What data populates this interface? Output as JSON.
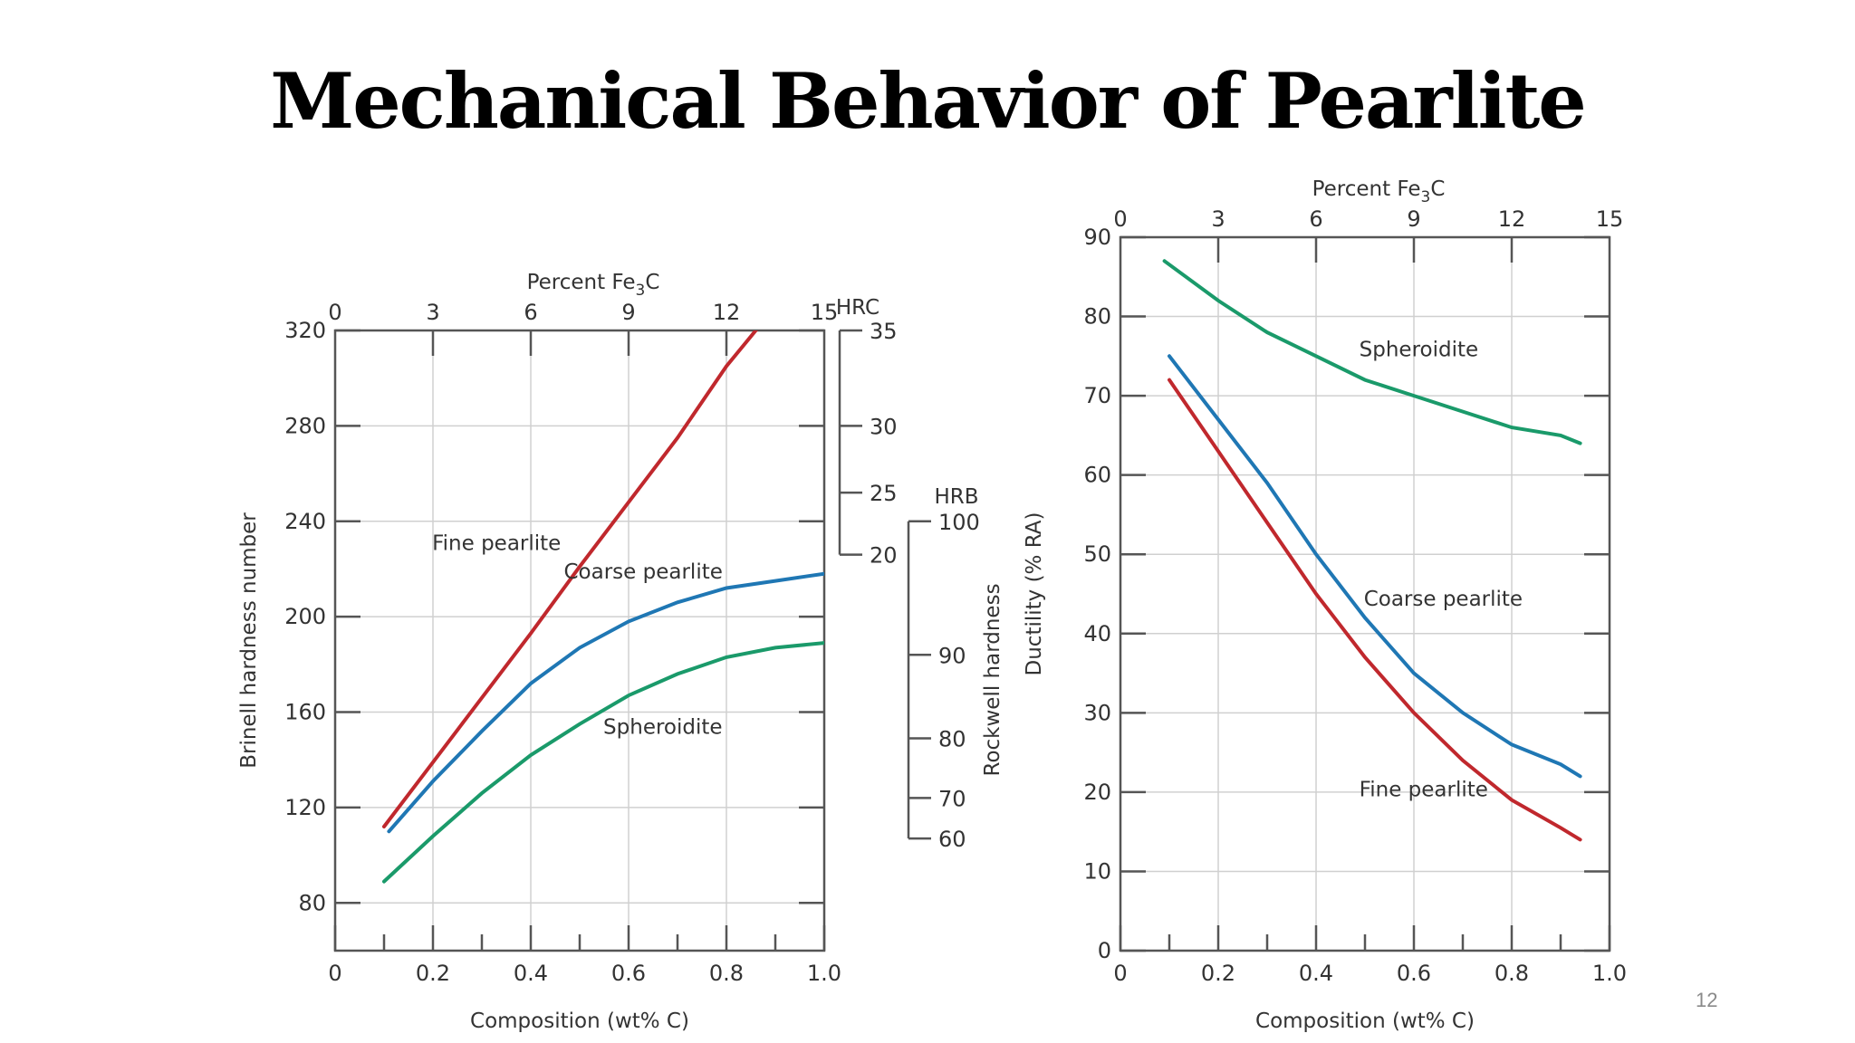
{
  "slide": {
    "title": "Mechanical Behavior of Pearlite",
    "page_number": "12"
  },
  "chart_data": [
    {
      "type": "line",
      "xlabel": "Composition (wt% C)",
      "x_ticks": [
        "0",
        "0.2",
        "0.4",
        "0.6",
        "0.8",
        "1.0"
      ],
      "xlim": [
        0,
        1.0
      ],
      "x2label_parts": [
        "Percent Fe",
        "3",
        "C"
      ],
      "x2_ticks": [
        "0",
        "3",
        "6",
        "9",
        "12",
        "15"
      ],
      "ylabel": "Brinell hardness number",
      "y_ticks": [
        "80",
        "120",
        "160",
        "200",
        "240",
        "280",
        "320"
      ],
      "ylim": [
        60,
        320
      ],
      "grid": true,
      "hrc_scale": {
        "label": "HRC",
        "ticks": [
          {
            "label": "35",
            "brinell": 320
          },
          {
            "label": "30",
            "brinell": 280
          },
          {
            "label": "25",
            "brinell": 252
          },
          {
            "label": "20",
            "brinell": 226
          }
        ]
      },
      "hrb_scale": {
        "label": "HRB",
        "axis_label": "Rockwell hardness",
        "ticks": [
          {
            "label": "100",
            "brinell": 240
          },
          {
            "label": "90",
            "brinell": 184
          },
          {
            "label": "80",
            "brinell": 149
          },
          {
            "label": "70",
            "brinell": 124
          },
          {
            "label": "60",
            "brinell": 107
          }
        ]
      },
      "series": [
        {
          "name": "Fine pearlite",
          "color": "#c0282d",
          "label_pos": {
            "x": 0.33,
            "y": 228
          },
          "points": [
            [
              0.1,
              112
            ],
            [
              0.2,
              139
            ],
            [
              0.3,
              166
            ],
            [
              0.4,
              193
            ],
            [
              0.5,
              221
            ],
            [
              0.6,
              248
            ],
            [
              0.7,
              275
            ],
            [
              0.8,
              305
            ],
            [
              0.9,
              330
            ],
            [
              0.95,
              340
            ]
          ]
        },
        {
          "name": "Coarse pearlite",
          "color": "#1f77b4",
          "label_pos": {
            "x": 0.63,
            "y": 216
          },
          "points": [
            [
              0.11,
              110
            ],
            [
              0.2,
              131
            ],
            [
              0.3,
              152
            ],
            [
              0.4,
              172
            ],
            [
              0.5,
              187
            ],
            [
              0.6,
              198
            ],
            [
              0.7,
              206
            ],
            [
              0.8,
              212
            ],
            [
              0.9,
              215
            ],
            [
              1.0,
              218
            ]
          ]
        },
        {
          "name": "Spheroidite",
          "color": "#1a9a6a",
          "label_pos": {
            "x": 0.67,
            "y": 151
          },
          "points": [
            [
              0.1,
              89
            ],
            [
              0.2,
              108
            ],
            [
              0.3,
              126
            ],
            [
              0.4,
              142
            ],
            [
              0.5,
              155
            ],
            [
              0.6,
              167
            ],
            [
              0.7,
              176
            ],
            [
              0.8,
              183
            ],
            [
              0.9,
              187
            ],
            [
              1.0,
              189
            ]
          ]
        }
      ]
    },
    {
      "type": "line",
      "xlabel": "Composition (wt% C)",
      "x_ticks": [
        "0",
        "0.2",
        "0.4",
        "0.6",
        "0.8",
        "1.0"
      ],
      "xlim": [
        0,
        1.0
      ],
      "x2label_parts": [
        "Percent Fe",
        "3",
        "C"
      ],
      "x2_ticks": [
        "0",
        "3",
        "6",
        "9",
        "12",
        "15"
      ],
      "ylabel": "Ductility (% RA)",
      "y_ticks": [
        "0",
        "10",
        "20",
        "30",
        "40",
        "50",
        "60",
        "70",
        "80",
        "90"
      ],
      "ylim": [
        0,
        90
      ],
      "grid": true,
      "series": [
        {
          "name": "Spheroidite",
          "color": "#1a9a6a",
          "label_pos": {
            "x": 0.61,
            "y": 75
          },
          "points": [
            [
              0.09,
              87
            ],
            [
              0.2,
              82
            ],
            [
              0.3,
              78
            ],
            [
              0.4,
              75
            ],
            [
              0.5,
              72
            ],
            [
              0.6,
              70
            ],
            [
              0.7,
              68
            ],
            [
              0.8,
              66
            ],
            [
              0.9,
              65
            ],
            [
              0.94,
              64
            ]
          ]
        },
        {
          "name": "Coarse pearlite",
          "color": "#1f77b4",
          "label_pos": {
            "x": 0.66,
            "y": 43.5
          },
          "points": [
            [
              0.1,
              75
            ],
            [
              0.2,
              67
            ],
            [
              0.3,
              59
            ],
            [
              0.4,
              50
            ],
            [
              0.5,
              42
            ],
            [
              0.6,
              35
            ],
            [
              0.7,
              30
            ],
            [
              0.8,
              26
            ],
            [
              0.9,
              23.5
            ],
            [
              0.94,
              22
            ]
          ]
        },
        {
          "name": "Fine pearlite",
          "color": "#c0282d",
          "label_pos": {
            "x": 0.62,
            "y": 19.5
          },
          "points": [
            [
              0.1,
              72
            ],
            [
              0.2,
              63
            ],
            [
              0.3,
              54
            ],
            [
              0.4,
              45
            ],
            [
              0.5,
              37
            ],
            [
              0.6,
              30
            ],
            [
              0.7,
              24
            ],
            [
              0.8,
              19
            ],
            [
              0.9,
              15.5
            ],
            [
              0.94,
              14
            ]
          ]
        }
      ]
    }
  ]
}
